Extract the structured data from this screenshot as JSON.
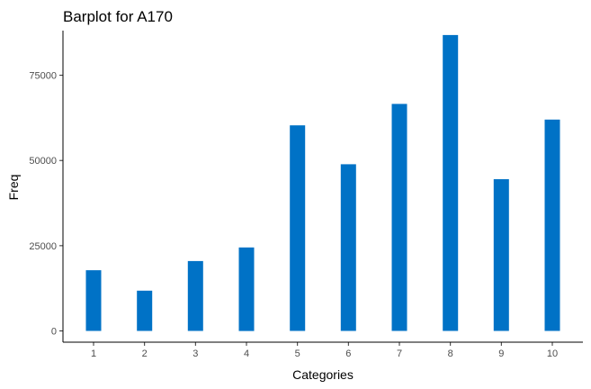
{
  "chart_data": {
    "type": "bar",
    "title": "Barplot for A170",
    "xlabel": "Categories",
    "ylabel": "Freq",
    "categories": [
      "1",
      "2",
      "3",
      "4",
      "5",
      "6",
      "7",
      "8",
      "9",
      "10"
    ],
    "values": [
      17800,
      11800,
      20500,
      24500,
      60300,
      48900,
      66600,
      86800,
      44500,
      62000
    ],
    "yticks": [
      0,
      25000,
      50000,
      75000
    ],
    "ytick_labels": [
      "0",
      "25000",
      "50000",
      "75000"
    ],
    "ylim": [
      0,
      91000
    ],
    "bar_color": "#0072c6",
    "grid": false,
    "legend": "none"
  }
}
